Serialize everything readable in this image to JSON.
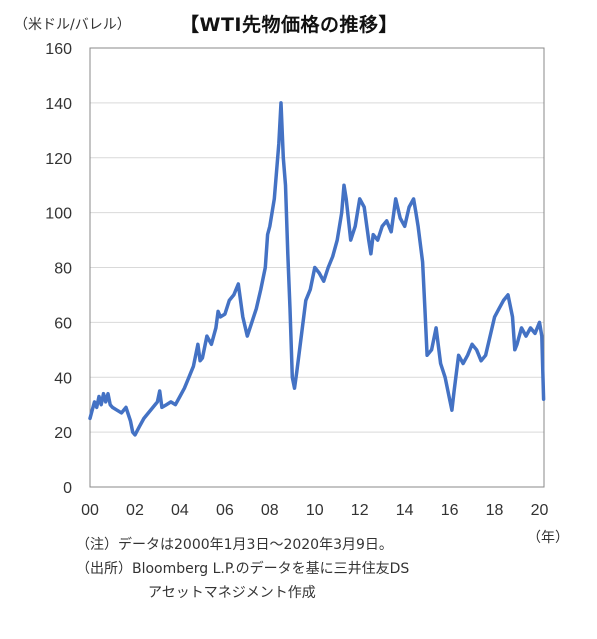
{
  "unit_label": "（米ドル/バレル）",
  "year_unit": "（年）",
  "notes": {
    "line1": "（注）データは2000年1月3日～2020年3月9日。",
    "line2": "（出所）Bloomberg L.P.のデータを基に三井住友DS",
    "line3": "アセットマネジメント作成"
  },
  "colors": {
    "line": "#4472C4",
    "grid": "#d9d9d9",
    "axis": "#888888"
  },
  "chart_data": {
    "type": "line",
    "title": "【WTI先物価格の推移】",
    "ylabel": "（米ドル/バレル）",
    "xlabel": "（年）",
    "xlim": [
      2000.0,
      2020.2
    ],
    "ylim": [
      0,
      160
    ],
    "grid": true,
    "x_tick_values": [
      2000,
      2002,
      2004,
      2006,
      2008,
      2010,
      2012,
      2014,
      2016,
      2018,
      2020
    ],
    "x_tick_labels": [
      "00",
      "02",
      "04",
      "06",
      "08",
      "10",
      "12",
      "14",
      "16",
      "18",
      "20"
    ],
    "y_ticks": [
      0,
      20,
      40,
      60,
      80,
      100,
      120,
      140,
      160
    ],
    "series": [
      {
        "name": "WTI",
        "x": [
          2000.0,
          2000.1,
          2000.2,
          2000.3,
          2000.4,
          2000.5,
          2000.6,
          2000.7,
          2000.8,
          2000.9,
          2001.0,
          2001.2,
          2001.4,
          2001.6,
          2001.8,
          2001.9,
          2002.0,
          2002.2,
          2002.4,
          2002.6,
          2002.8,
          2003.0,
          2003.1,
          2003.2,
          2003.4,
          2003.6,
          2003.8,
          2004.0,
          2004.2,
          2004.4,
          2004.6,
          2004.8,
          2004.9,
          2005.0,
          2005.2,
          2005.4,
          2005.6,
          2005.7,
          2005.8,
          2006.0,
          2006.2,
          2006.4,
          2006.6,
          2006.8,
          2007.0,
          2007.2,
          2007.4,
          2007.6,
          2007.8,
          2007.9,
          2008.0,
          2008.2,
          2008.4,
          2008.5,
          2008.6,
          2008.7,
          2008.8,
          2008.9,
          2009.0,
          2009.1,
          2009.2,
          2009.4,
          2009.6,
          2009.8,
          2010.0,
          2010.2,
          2010.4,
          2010.6,
          2010.8,
          2011.0,
          2011.2,
          2011.3,
          2011.4,
          2011.6,
          2011.8,
          2012.0,
          2012.2,
          2012.4,
          2012.5,
          2012.6,
          2012.8,
          2013.0,
          2013.2,
          2013.4,
          2013.6,
          2013.8,
          2014.0,
          2014.2,
          2014.4,
          2014.5,
          2014.6,
          2014.8,
          2014.9,
          2015.0,
          2015.2,
          2015.4,
          2015.6,
          2015.8,
          2016.0,
          2016.1,
          2016.2,
          2016.4,
          2016.6,
          2016.8,
          2017.0,
          2017.2,
          2017.4,
          2017.6,
          2017.8,
          2018.0,
          2018.2,
          2018.4,
          2018.6,
          2018.8,
          2018.9,
          2019.0,
          2019.2,
          2019.4,
          2019.6,
          2019.8,
          2020.0,
          2020.1,
          2020.18
        ],
        "values": [
          25,
          28,
          31,
          29,
          33,
          30,
          34,
          31,
          34,
          30,
          29,
          28,
          27,
          29,
          24,
          20,
          19,
          22,
          25,
          27,
          29,
          31,
          35,
          29,
          30,
          31,
          30,
          33,
          36,
          40,
          44,
          52,
          46,
          47,
          55,
          52,
          58,
          64,
          62,
          63,
          68,
          70,
          74,
          62,
          55,
          60,
          65,
          72,
          80,
          92,
          95,
          105,
          125,
          140,
          120,
          110,
          85,
          65,
          40,
          36,
          42,
          55,
          68,
          72,
          80,
          78,
          75,
          80,
          84,
          90,
          100,
          110,
          105,
          90,
          95,
          105,
          102,
          90,
          85,
          92,
          90,
          95,
          97,
          93,
          105,
          98,
          95,
          102,
          105,
          100,
          95,
          82,
          65,
          48,
          50,
          58,
          45,
          40,
          32,
          28,
          35,
          48,
          45,
          48,
          52,
          50,
          46,
          48,
          55,
          62,
          65,
          68,
          70,
          62,
          50,
          52,
          58,
          55,
          58,
          56,
          60,
          55,
          32
        ]
      }
    ]
  }
}
